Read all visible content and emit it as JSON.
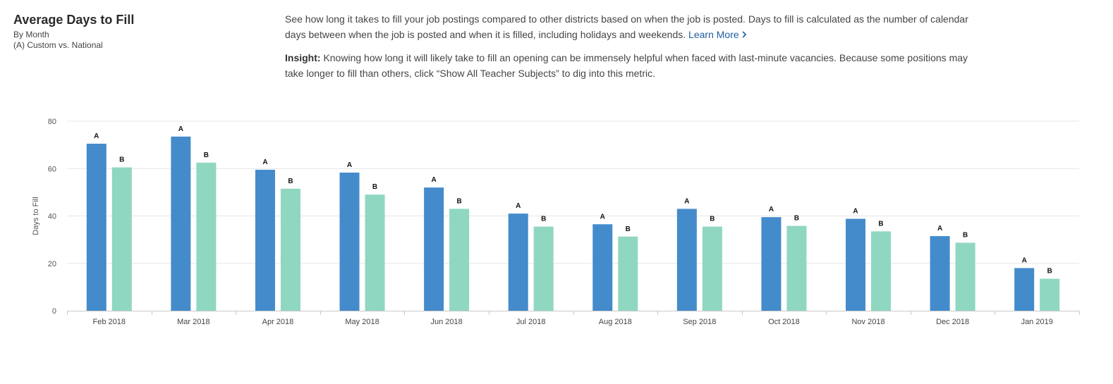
{
  "header": {
    "title": "Average Days to Fill",
    "subtitle_1": "By Month",
    "subtitle_2": "(A) Custom vs. National"
  },
  "description": {
    "text": "See how long it takes to fill your job postings compared to other districts based on when the job is posted. Days to fill is calculated as the number of calendar days between when the job is posted and when it is filled, including holidays and weekends.",
    "link_label": "Learn More",
    "link_icon": "chevron-right-icon",
    "insight_label": "Insight:",
    "insight_text": "Knowing how long it will likely take to fill an opening can be immensely helpful when faced with last-minute vacancies. Because some positions may take longer to fill than others, click “Show All Teacher Subjects” to dig into this metric."
  },
  "chart_data": {
    "type": "bar",
    "title": "",
    "xlabel": "",
    "ylabel": "Days to Fill",
    "ylim": [
      0,
      80
    ],
    "yticks": [
      0,
      20,
      40,
      60,
      80
    ],
    "grid": true,
    "categories": [
      "Feb 2018",
      "Mar 2018",
      "Apr 2018",
      "May 2018",
      "Jun 2018",
      "Jul 2018",
      "Aug 2018",
      "Sep 2018",
      "Oct 2018",
      "Nov 2018",
      "Dec 2018",
      "Jan 2019"
    ],
    "series": [
      {
        "bar_label": "A",
        "color": "#448bcb",
        "values": [
          70.5,
          73.5,
          59.5,
          58.3,
          52,
          41,
          36.5,
          43,
          39.5,
          38.8,
          31.5,
          18
        ]
      },
      {
        "bar_label": "B",
        "color": "#8fd7c1",
        "values": [
          60.5,
          62.5,
          51.5,
          49,
          43,
          35.5,
          31.3,
          35.5,
          35.8,
          33.5,
          28.7,
          13.5
        ]
      }
    ]
  }
}
